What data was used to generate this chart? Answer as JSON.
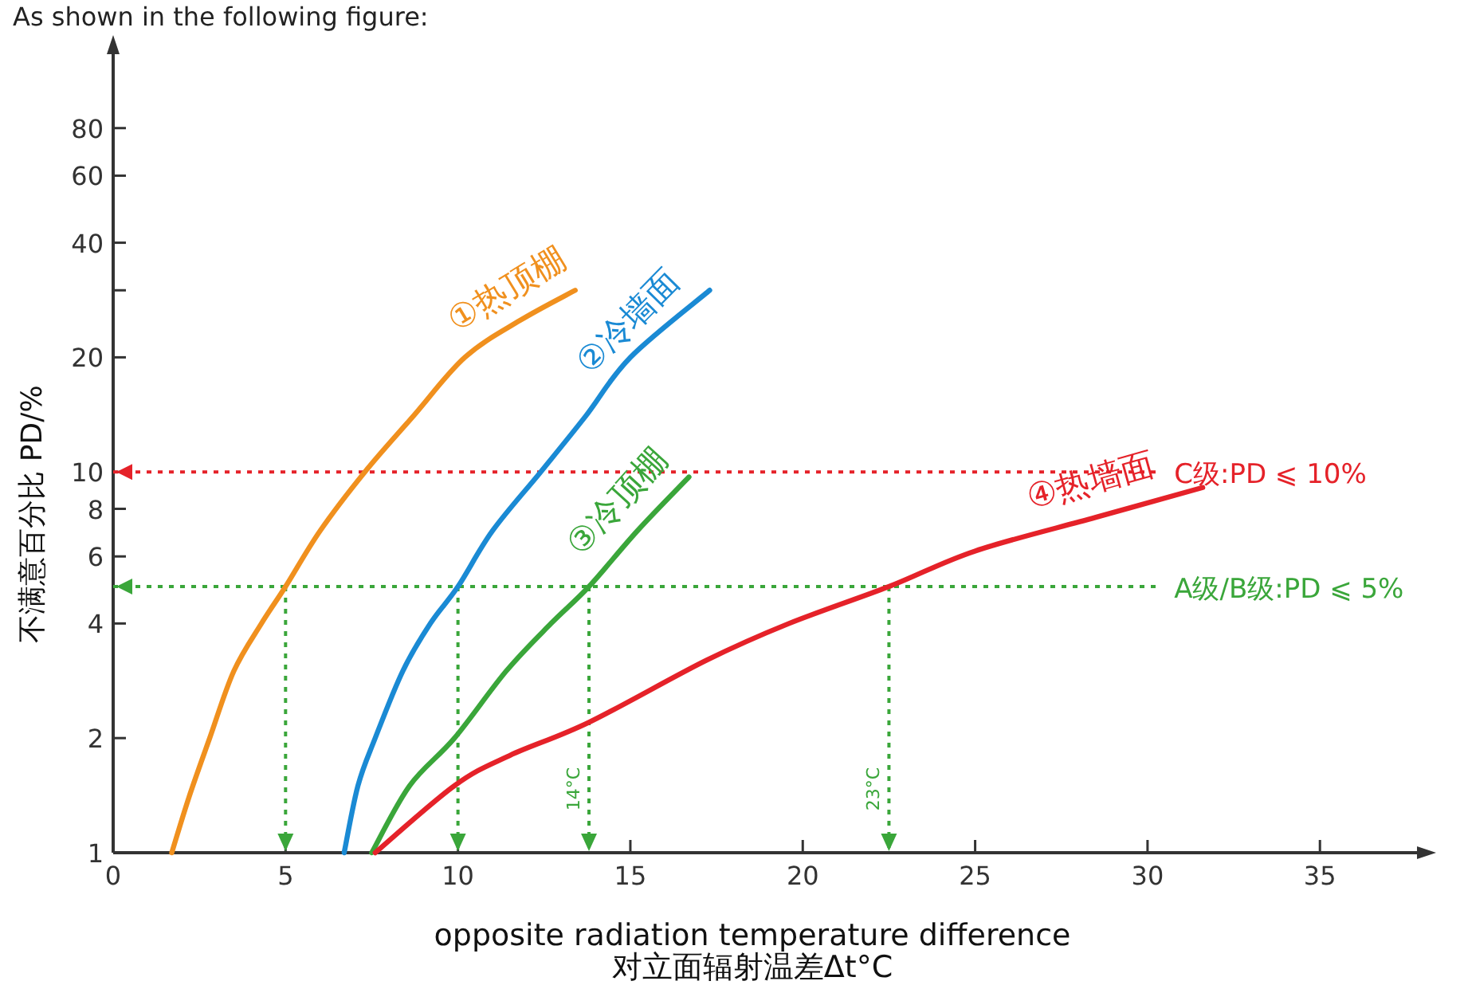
{
  "chart_data": {
    "type": "line",
    "xlabel": "opposite radiation temperature difference\n对立面辐射温差Δt°C",
    "ylabel": "不满意百分比 PD/%",
    "annotations": [
      "As shown in the following figure:"
    ],
    "log": "y",
    "grid": false,
    "marker": "none",
    "line_style": "solid",
    "xlim": [
      0,
      38
    ],
    "xticks": [
      0,
      5,
      10,
      15,
      20,
      25,
      30,
      35
    ],
    "ylim": [
      1,
      130
    ],
    "yticks": [
      1,
      2,
      4,
      6,
      8,
      10,
      20,
      {
        "value": 30,
        "label": null
      },
      40,
      60,
      80
    ],
    "series": [
      {
        "name": "①热顶棚",
        "color": "#f0901e",
        "x": [
          1.7,
          2.2,
          2.8,
          3.5,
          4.3,
          5.0,
          6.0,
          7.3,
          8.7,
          10.2,
          11.8,
          13.4
        ],
        "values": [
          1,
          1.4,
          2,
          3,
          4,
          5,
          7,
          10,
          14,
          20,
          25,
          30
        ]
      },
      {
        "name": "②冷墙面",
        "color": "#1a8ad4",
        "x": [
          6.7,
          7.1,
          7.6,
          8.4,
          9.2,
          10.0,
          11.0,
          12.4,
          13.7,
          15.0,
          17.3
        ],
        "values": [
          1,
          1.5,
          2,
          3,
          4,
          5,
          7,
          10,
          14,
          20,
          30
        ]
      },
      {
        "name": "③冷顶棚",
        "color": "#3aa63a",
        "x": [
          7.5,
          8.6,
          9.9,
          11.4,
          12.7,
          13.8,
          15.2,
          16.7
        ],
        "values": [
          1,
          1.5,
          2,
          3,
          4,
          5,
          7,
          9.7
        ]
      },
      {
        "name": "④热墙面",
        "color": "#e52229",
        "x": [
          7.6,
          9.9,
          11.5,
          13.8,
          17.2,
          19.6,
          22.5,
          25.0,
          28.5,
          31.6
        ],
        "values": [
          1,
          1.5,
          1.8,
          2.2,
          3.2,
          4,
          5,
          6.2,
          7.6,
          9.1
        ]
      }
    ],
    "ref_lines": [
      {
        "axis": "y",
        "value": 10,
        "label": "C级:PD ⩽ 10%",
        "color": "#e52229",
        "line_style": "dotted"
      },
      {
        "axis": "y",
        "value": 5,
        "label": "A级/B级:PD ⩽ 5%",
        "color": "#3aa63a",
        "line_style": "dotted"
      },
      {
        "axis": "x",
        "value": 5,
        "label": null,
        "color": "#3aa63a",
        "line_style": "dotted"
      },
      {
        "axis": "x",
        "value": 10,
        "label": null,
        "color": "#3aa63a",
        "line_style": "dotted"
      },
      {
        "axis": "x",
        "value": 13.8,
        "label": "14°C",
        "color": "#3aa63a",
        "line_style": "dotted"
      },
      {
        "axis": "x",
        "value": 22.5,
        "label": "23°C",
        "color": "#3aa63a",
        "line_style": "dotted"
      }
    ]
  }
}
